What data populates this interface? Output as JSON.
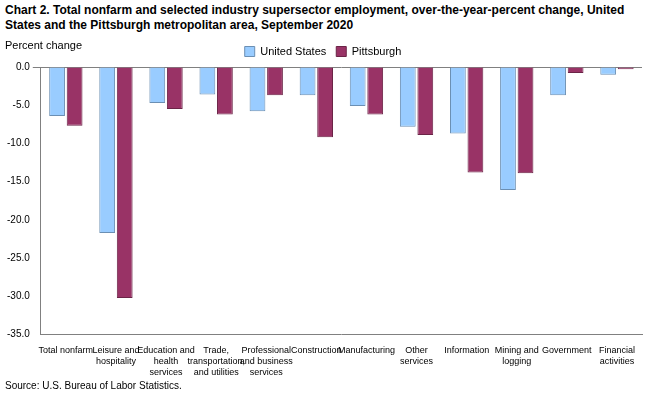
{
  "chart_data": {
    "type": "bar",
    "title": "Chart 2. Total nonfarm and selected industry supersector employment, over-the-year-percent change, United States and the Pittsburgh metropolitan area, September 2020",
    "y_label": "Percent change",
    "source": "Source: U.S. Bureau of Labor Statistics.",
    "categories": [
      "Total nonfarm",
      "Leisure and hospitality",
      "Education and health services",
      "Trade, transportation, and utilities",
      "Professional and business services",
      "Construction",
      "Manufacturing",
      "Other services",
      "Information",
      "Mining and logging",
      "Government",
      "Financial activities"
    ],
    "series": [
      {
        "name": "United States",
        "color": "#99ccff",
        "values": [
          -6.4,
          -21.7,
          -4.7,
          -3.6,
          -5.8,
          -3.7,
          -5.1,
          -7.8,
          -8.7,
          -16.1,
          -3.7,
          -1.0
        ]
      },
      {
        "name": "Pittsburgh",
        "color": "#993366",
        "values": [
          -7.7,
          -30.2,
          -5.5,
          -6.2,
          -3.7,
          -9.2,
          -6.2,
          -8.9,
          -13.8,
          -13.9,
          -0.8,
          -0.3
        ]
      }
    ],
    "ylim": [
      -35,
      0
    ],
    "yticks": [
      {
        "value": -35,
        "label": "-35.0"
      },
      {
        "value": -30,
        "label": "-30.0"
      },
      {
        "value": -25,
        "label": "-25.0"
      },
      {
        "value": -20,
        "label": "-20.0"
      },
      {
        "value": -15,
        "label": "-15.0"
      },
      {
        "value": -10,
        "label": "-10.0"
      },
      {
        "value": -5,
        "label": "-5.0"
      },
      {
        "value": 0,
        "label": "0.0"
      }
    ],
    "grid": false,
    "legend": "top"
  }
}
